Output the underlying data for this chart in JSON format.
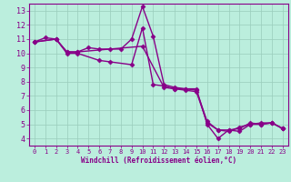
{
  "xlabel": "Windchill (Refroidissement éolien,°C)",
  "bg_color": "#bbeedd",
  "line_color": "#880088",
  "grid_color": "#99ccbb",
  "xlim": [
    -0.5,
    23.5
  ],
  "ylim": [
    3.5,
    13.5
  ],
  "xticks": [
    0,
    1,
    2,
    3,
    4,
    5,
    6,
    7,
    8,
    9,
    10,
    11,
    12,
    13,
    14,
    15,
    16,
    17,
    18,
    19,
    20,
    21,
    22,
    23
  ],
  "yticks": [
    4,
    5,
    6,
    7,
    8,
    9,
    10,
    11,
    12,
    13
  ],
  "series": [
    {
      "x": [
        0,
        1,
        2,
        3,
        4,
        5,
        6,
        7,
        8,
        9,
        10,
        11,
        12,
        13,
        14,
        15,
        16,
        17,
        18,
        19,
        20,
        21,
        22,
        23
      ],
      "y": [
        10.8,
        11.1,
        11.0,
        10.1,
        10.1,
        10.4,
        10.3,
        10.3,
        10.3,
        11.0,
        13.3,
        11.2,
        7.8,
        7.6,
        7.5,
        7.5,
        5.0,
        4.0,
        4.6,
        4.5,
        5.0,
        5.1,
        5.1,
        4.7
      ]
    },
    {
      "x": [
        0,
        2,
        3,
        4,
        6,
        7,
        9,
        10,
        11,
        12,
        13,
        14,
        15,
        16,
        17,
        18,
        19,
        20,
        21,
        22,
        23
      ],
      "y": [
        10.8,
        11.0,
        10.0,
        10.0,
        9.5,
        9.4,
        9.2,
        11.8,
        7.8,
        7.7,
        7.5,
        7.4,
        7.3,
        5.1,
        4.6,
        4.5,
        4.8,
        5.0,
        5.0,
        5.1,
        4.7
      ]
    },
    {
      "x": [
        0,
        2,
        3,
        4,
        10,
        12,
        13,
        14,
        15,
        16,
        17,
        18,
        19,
        20,
        21,
        22,
        23
      ],
      "y": [
        10.8,
        11.0,
        10.1,
        10.1,
        10.5,
        7.6,
        7.5,
        7.5,
        7.4,
        5.2,
        4.6,
        4.6,
        4.7,
        5.1,
        5.0,
        5.1,
        4.7
      ]
    }
  ],
  "marker": "D",
  "markersize": 2.5,
  "linewidth": 1.0,
  "tick_fontsize_x": 5,
  "tick_fontsize_y": 6,
  "xlabel_fontsize": 5.5
}
